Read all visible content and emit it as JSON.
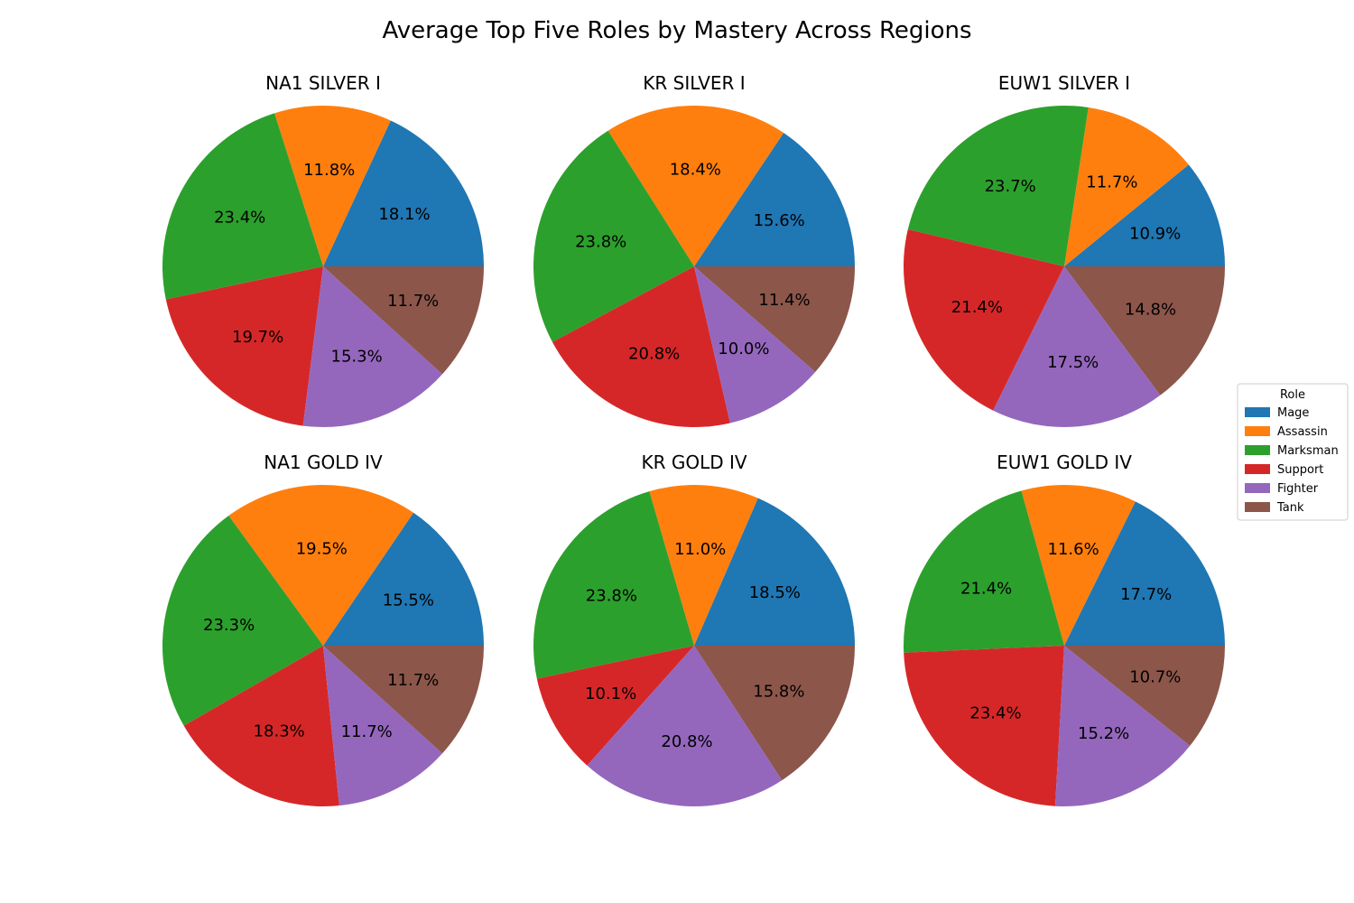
{
  "chart_data": {
    "type": "pie",
    "title": "Average Top Five Roles by Mastery Across Regions",
    "categories": [
      "Mage",
      "Assassin",
      "Marksman",
      "Support",
      "Fighter",
      "Tank"
    ],
    "colors": [
      "#1f77b4",
      "#ff7f0e",
      "#2ca02c",
      "#d62728",
      "#9467bd",
      "#8c564b"
    ],
    "legend": {
      "title": "Role",
      "placement": "center-right"
    },
    "pies": [
      {
        "title": "NA1 SILVER I",
        "values": [
          18.1,
          11.8,
          23.4,
          19.7,
          15.3,
          11.7
        ]
      },
      {
        "title": "KR SILVER I",
        "values": [
          15.6,
          18.4,
          23.8,
          20.8,
          10.0,
          11.4
        ]
      },
      {
        "title": "EUW1 SILVER I",
        "values": [
          10.9,
          11.7,
          23.7,
          21.4,
          17.5,
          14.8
        ]
      },
      {
        "title": "NA1 GOLD IV",
        "values": [
          15.5,
          19.5,
          23.3,
          18.3,
          11.7,
          11.7
        ]
      },
      {
        "title": "KR GOLD IV",
        "values": [
          18.5,
          11.0,
          23.8,
          10.1,
          20.8,
          15.8
        ]
      },
      {
        "title": "EUW1 GOLD IV",
        "values": [
          17.7,
          11.6,
          21.4,
          23.4,
          15.2,
          10.7
        ]
      }
    ]
  }
}
